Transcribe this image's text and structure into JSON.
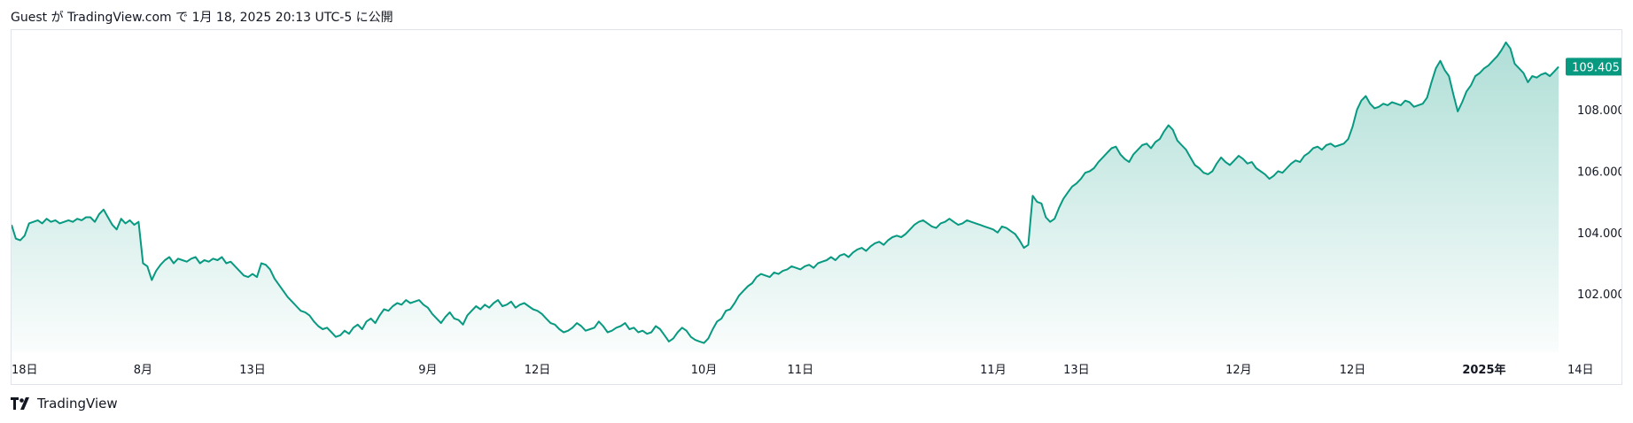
{
  "header": {
    "attribution": "Guest が TradingView.com で 1月 18, 2025 20:13 UTC-5 に公開"
  },
  "footer": {
    "brand": "TradingView",
    "logo_icon": "tradingview-logo-icon"
  },
  "colors": {
    "line": "#089981",
    "area_top": "#089981",
    "badge_bg": "#089981",
    "axis_text": "#131722",
    "border": "#e0e3eb"
  },
  "chart_data": {
    "type": "area",
    "last_value_label": "109.405",
    "y_axis": {
      "ticks": [
        102,
        104,
        106,
        108
      ],
      "tick_labels": [
        "102.000",
        "104.000",
        "106.000",
        "108.000"
      ],
      "range": [
        100.1,
        110.6
      ]
    },
    "x_axis": {
      "tick_labels": [
        "18日",
        "8月",
        "13日",
        "9月",
        "12日",
        "10月",
        "11日",
        "11月",
        "13日",
        "12月",
        "12日",
        "2025年",
        "14日"
      ],
      "tick_index": [
        0,
        30,
        55,
        95,
        120,
        158,
        180,
        224,
        243,
        280,
        306,
        336,
        358
      ],
      "bold_labels": [
        "2025年"
      ]
    },
    "series": [
      {
        "values": [
          104.25,
          103.8,
          103.75,
          103.9,
          104.3,
          104.35,
          104.4,
          104.3,
          104.45,
          104.35,
          104.4,
          104.3,
          104.35,
          104.4,
          104.35,
          104.45,
          104.4,
          104.5,
          104.5,
          104.35,
          104.6,
          104.75,
          104.5,
          104.25,
          104.1,
          104.45,
          104.3,
          104.4,
          104.25,
          104.35,
          103.0,
          102.9,
          102.45,
          102.75,
          102.95,
          103.1,
          103.2,
          103.0,
          103.15,
          103.1,
          103.05,
          103.15,
          103.2,
          103.0,
          103.1,
          103.05,
          103.15,
          103.1,
          103.2,
          103.0,
          103.05,
          102.9,
          102.75,
          102.6,
          102.55,
          102.65,
          102.55,
          103.0,
          102.95,
          102.8,
          102.5,
          102.3,
          102.1,
          101.9,
          101.75,
          101.6,
          101.45,
          101.4,
          101.3,
          101.1,
          100.95,
          100.85,
          100.9,
          100.75,
          100.6,
          100.65,
          100.8,
          100.7,
          100.9,
          101.0,
          100.85,
          101.1,
          101.2,
          101.05,
          101.3,
          101.5,
          101.45,
          101.6,
          101.7,
          101.65,
          101.8,
          101.7,
          101.75,
          101.8,
          101.65,
          101.55,
          101.35,
          101.2,
          101.05,
          101.25,
          101.4,
          101.2,
          101.15,
          101.0,
          101.3,
          101.45,
          101.6,
          101.5,
          101.65,
          101.55,
          101.7,
          101.8,
          101.6,
          101.65,
          101.75,
          101.55,
          101.65,
          101.7,
          101.6,
          101.5,
          101.45,
          101.35,
          101.2,
          101.05,
          101.0,
          100.85,
          100.75,
          100.8,
          100.9,
          101.05,
          100.95,
          100.8,
          100.85,
          100.9,
          101.1,
          100.95,
          100.75,
          100.8,
          100.9,
          100.95,
          101.05,
          100.85,
          100.9,
          100.75,
          100.8,
          100.7,
          100.75,
          100.95,
          100.85,
          100.65,
          100.45,
          100.55,
          100.75,
          100.9,
          100.8,
          100.6,
          100.5,
          100.45,
          100.4,
          100.55,
          100.85,
          101.1,
          101.2,
          101.45,
          101.5,
          101.7,
          101.95,
          102.1,
          102.25,
          102.35,
          102.55,
          102.65,
          102.6,
          102.55,
          102.7,
          102.65,
          102.75,
          102.8,
          102.9,
          102.85,
          102.8,
          102.9,
          102.95,
          102.85,
          103.0,
          103.05,
          103.1,
          103.2,
          103.1,
          103.25,
          103.3,
          103.2,
          103.35,
          103.45,
          103.5,
          103.4,
          103.55,
          103.65,
          103.7,
          103.6,
          103.75,
          103.85,
          103.9,
          103.85,
          103.95,
          104.1,
          104.25,
          104.35,
          104.4,
          104.3,
          104.2,
          104.15,
          104.3,
          104.35,
          104.45,
          104.35,
          104.25,
          104.3,
          104.4,
          104.35,
          104.3,
          104.25,
          104.2,
          104.15,
          104.1,
          104.0,
          104.2,
          104.15,
          104.05,
          103.95,
          103.75,
          103.5,
          103.6,
          105.2,
          105.0,
          104.95,
          104.5,
          104.35,
          104.45,
          104.8,
          105.1,
          105.3,
          105.5,
          105.6,
          105.75,
          105.95,
          106.0,
          106.1,
          106.3,
          106.45,
          106.6,
          106.75,
          106.8,
          106.55,
          106.4,
          106.3,
          106.55,
          106.7,
          106.85,
          106.9,
          106.75,
          106.95,
          107.05,
          107.3,
          107.5,
          107.35,
          107.0,
          106.85,
          106.7,
          106.45,
          106.2,
          106.1,
          105.95,
          105.9,
          106.0,
          106.25,
          106.45,
          106.3,
          106.2,
          106.35,
          106.5,
          106.4,
          106.25,
          106.3,
          106.1,
          106.0,
          105.9,
          105.75,
          105.85,
          106.0,
          105.95,
          106.1,
          106.25,
          106.35,
          106.3,
          106.5,
          106.6,
          106.75,
          106.8,
          106.7,
          106.85,
          106.9,
          106.8,
          106.85,
          106.9,
          107.05,
          107.45,
          108.0,
          108.3,
          108.45,
          108.2,
          108.05,
          108.1,
          108.2,
          108.15,
          108.25,
          108.2,
          108.15,
          108.3,
          108.25,
          108.1,
          108.15,
          108.2,
          108.4,
          108.9,
          109.35,
          109.6,
          109.3,
          109.1,
          108.5,
          107.95,
          108.25,
          108.6,
          108.8,
          109.1,
          109.2,
          109.35,
          109.45,
          109.6,
          109.75,
          109.95,
          110.2,
          110.0,
          109.5,
          109.35,
          109.2,
          108.9,
          109.1,
          109.05,
          109.15,
          109.2,
          109.1,
          109.25,
          109.405
        ]
      }
    ]
  }
}
